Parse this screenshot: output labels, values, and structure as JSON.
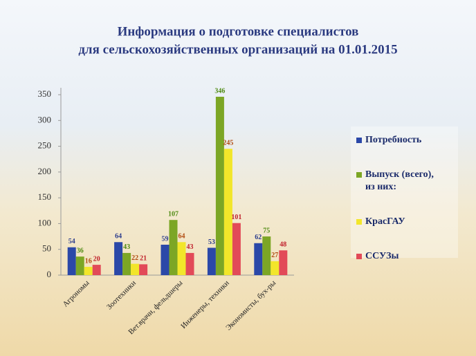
{
  "chart_data": {
    "type": "bar",
    "title": [
      "Информация о подготовке специалистов",
      "для сельскохозяйственных организаций на 01.01.2015"
    ],
    "categories": [
      "Агрономы",
      "Зоотехники",
      "Вет.врачи, фельдшеры",
      "Инженеры, техники",
      "Экономисты, бух-ры"
    ],
    "series": [
      {
        "name": "Потребность",
        "color": "#2b48a8",
        "label_color": "#2b3c8c",
        "values": [
          54,
          64,
          59,
          53,
          62
        ]
      },
      {
        "name": [
          "Выпуск (всего),",
          "из них:"
        ],
        "color": "#7ca625",
        "label_color": "#4e8a12",
        "values": [
          36,
          43,
          107,
          346,
          75
        ]
      },
      {
        "name": "КрасГАУ",
        "color": "#f2e62a",
        "label_color": "#b04a10",
        "values": [
          16,
          22,
          64,
          245,
          27
        ]
      },
      {
        "name": "ССУЗы",
        "color": "#e24a58",
        "label_color": "#c0202c",
        "values": [
          20,
          21,
          43,
          101,
          48
        ]
      }
    ],
    "ylim": [
      0,
      350
    ],
    "yticks": [
      0,
      50,
      100,
      150,
      200,
      250,
      300,
      350
    ],
    "grid": false,
    "legend": "right"
  }
}
